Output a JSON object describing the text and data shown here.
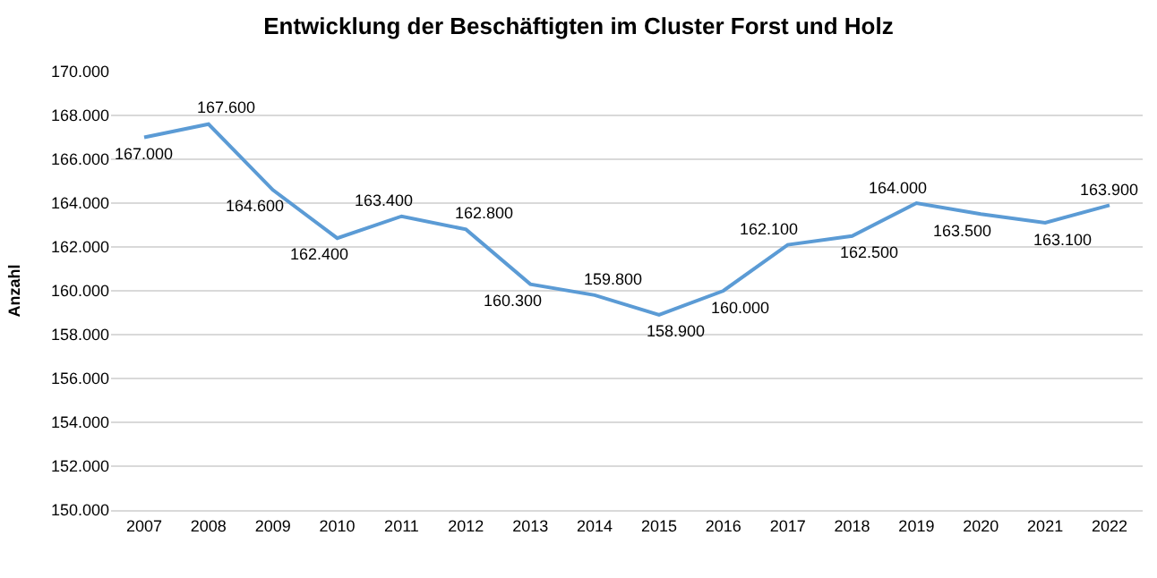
{
  "chart_data": {
    "type": "line",
    "title": "Entwicklung der Beschäftigten im Cluster Forst und Holz",
    "ylabel": "Anzahl",
    "categories": [
      "2007",
      "2008",
      "2009",
      "2010",
      "2011",
      "2012",
      "2013",
      "2014",
      "2015",
      "2016",
      "2017",
      "2018",
      "2019",
      "2020",
      "2021",
      "2022"
    ],
    "series": [
      {
        "color": "#5b9bd5",
        "values": [
          167000,
          167600,
          164600,
          162400,
          163400,
          162800,
          160300,
          159800,
          158900,
          160000,
          162100,
          162500,
          164000,
          163500,
          163100,
          163900
        ],
        "value_labels": [
          "167.000",
          "167.600",
          "164.600",
          "162.400",
          "163.400",
          "162.800",
          "160.300",
          "159.800",
          "158.900",
          "160.000",
          "162.100",
          "162.500",
          "164.000",
          "163.500",
          "163.100",
          "163.900"
        ]
      }
    ],
    "ylim": [
      150000,
      170000
    ],
    "yticks": [
      {
        "value": 150000,
        "label": "150.000"
      },
      {
        "value": 152000,
        "label": "152.000"
      },
      {
        "value": 154000,
        "label": "154.000"
      },
      {
        "value": 156000,
        "label": "156.000"
      },
      {
        "value": 158000,
        "label": "158.000"
      },
      {
        "value": 160000,
        "label": "160.000"
      },
      {
        "value": 162000,
        "label": "162.000"
      },
      {
        "value": 164000,
        "label": "164.000"
      },
      {
        "value": 166000,
        "label": "166.000"
      },
      {
        "value": 168000,
        "label": "168.000"
      },
      {
        "value": 170000,
        "label": "170.000"
      }
    ],
    "grid": "y",
    "marker": "none",
    "line_style": "solid"
  }
}
